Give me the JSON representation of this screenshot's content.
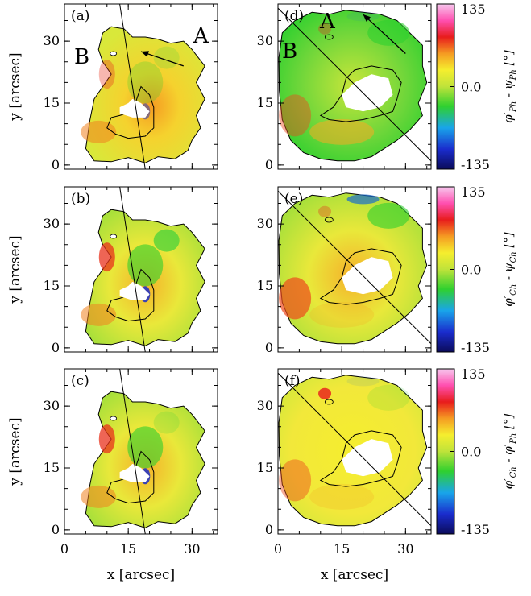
{
  "chart_data": {
    "type": "heatmap",
    "x_axis": {
      "label": "x [arcsec]",
      "ticks": [
        0,
        15,
        30
      ],
      "range": [
        0,
        36
      ]
    },
    "y_axis": {
      "label": "y [arcsec]",
      "ticks": [
        0,
        15,
        30
      ],
      "range": [
        -1,
        39
      ]
    },
    "panels": [
      {
        "tag": "(a)",
        "column": 0,
        "row": 0,
        "region_labels": [
          "A",
          "B"
        ],
        "arrow": true
      },
      {
        "tag": "(b)",
        "column": 0,
        "row": 1,
        "region_labels": [],
        "arrow": false
      },
      {
        "tag": "(c)",
        "column": 0,
        "row": 2,
        "region_labels": [],
        "arrow": false
      },
      {
        "tag": "(d)",
        "column": 1,
        "row": 0,
        "region_labels": [
          "A",
          "B"
        ],
        "arrow": true
      },
      {
        "tag": "(e)",
        "column": 1,
        "row": 1,
        "region_labels": [],
        "arrow": false
      },
      {
        "tag": "(f)",
        "column": 1,
        "row": 2,
        "region_labels": [],
        "arrow": false
      }
    ],
    "colorbars": [
      {
        "row": 0,
        "ticks": [
          "135",
          "0.0",
          "-135"
        ],
        "label_main": "φ′",
        "label_sub": "Ph",
        "label_mid": " - ψ",
        "label_sub2": "Ph",
        "unit": " [°]"
      },
      {
        "row": 1,
        "ticks": [
          "135",
          "0.0",
          "-135"
        ],
        "label_main": "φ′",
        "label_sub": "Ch",
        "label_mid": " - ψ",
        "label_sub2": "Ch",
        "unit": " [°]"
      },
      {
        "row": 2,
        "ticks": [
          "135",
          "0.0",
          "-135"
        ],
        "label_main": "φ′",
        "label_sub": "Ch",
        "label_mid": " - φ′",
        "label_sub2": "Ph",
        "unit": " [°]"
      }
    ],
    "colorbar_range": [
      -135,
      135
    ],
    "colormap": [
      "#0b0b5a",
      "#1a2ccd",
      "#19a5ea",
      "#2fd02f",
      "#bfe33a",
      "#f5ee2e",
      "#f59b22",
      "#e81c1c",
      "#ff4fb0",
      "#f7c8ee"
    ],
    "colors": {
      "axes": "#000000",
      "background": "#ffffff",
      "umbra": "#ffffff"
    }
  }
}
